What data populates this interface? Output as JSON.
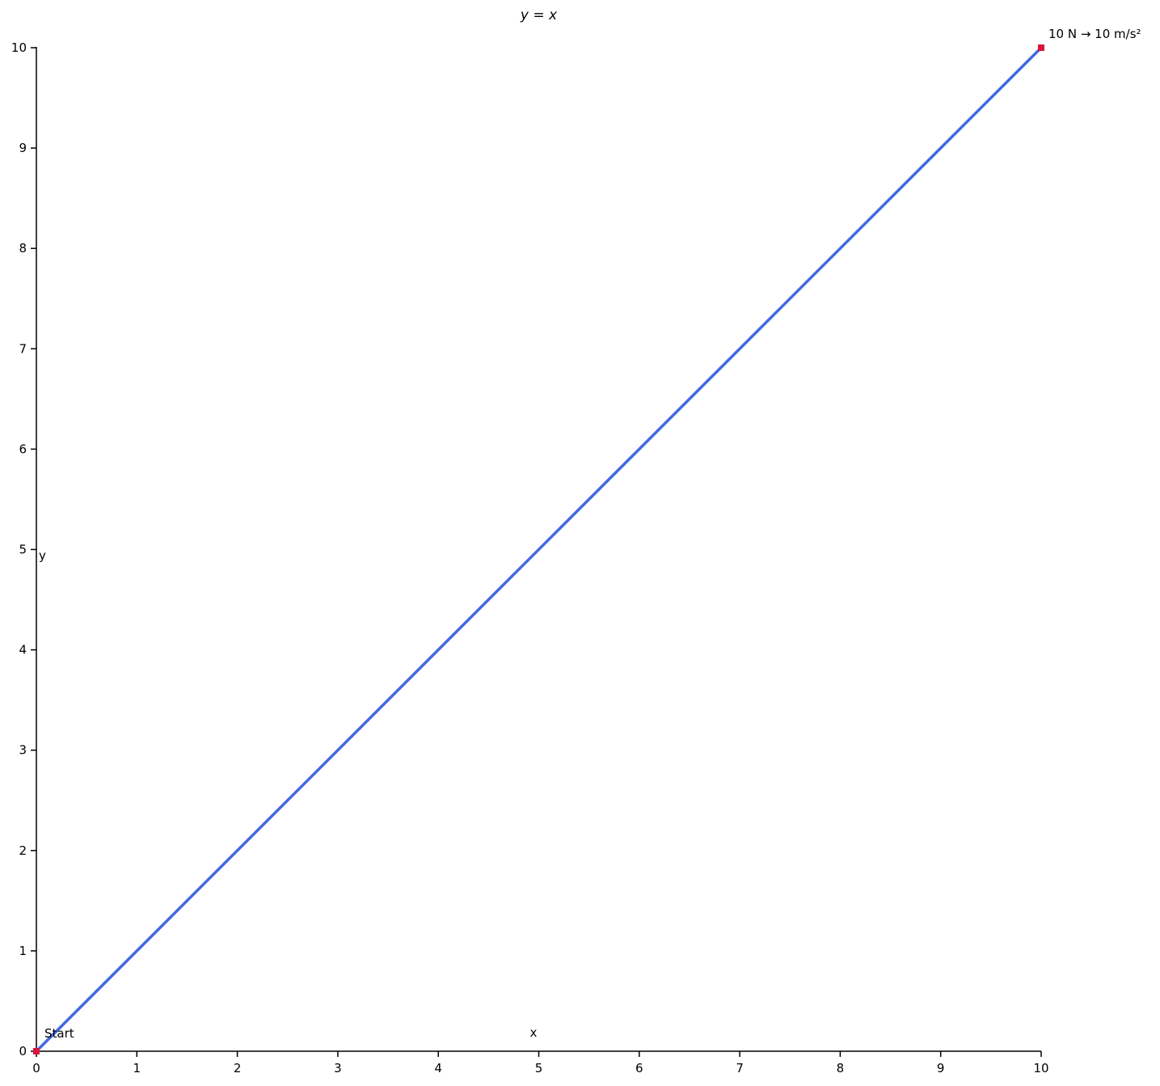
{
  "chart_data": {
    "type": "line",
    "title": "y = x",
    "xlabel": "x",
    "ylabel": "y",
    "xlim": [
      0,
      10
    ],
    "ylim": [
      0,
      10
    ],
    "xticks": [
      0,
      1,
      2,
      3,
      4,
      5,
      6,
      7,
      8,
      9,
      10
    ],
    "yticks": [
      0,
      1,
      2,
      3,
      4,
      5,
      6,
      7,
      8,
      9,
      10
    ],
    "grid": false,
    "legend": null,
    "series": [
      {
        "name": "y = x",
        "x": [
          0,
          10
        ],
        "y": [
          0,
          10
        ],
        "color": "#4169e1",
        "line_width": 3.5,
        "marker": "square",
        "marker_color": "#dc143c",
        "marker_size": 8,
        "marker_points": [
          [
            0,
            0
          ],
          [
            10,
            10
          ]
        ]
      }
    ],
    "annotations": [
      {
        "text": "Start",
        "x": 0,
        "y": 0
      },
      {
        "text": "10 N → 10 m/s²",
        "x": 10,
        "y": 10
      }
    ]
  },
  "colors": {
    "line": "#4169e1",
    "marker": "#dc143c",
    "axis": "#000000",
    "text": "#000000",
    "background": "#ffffff"
  }
}
